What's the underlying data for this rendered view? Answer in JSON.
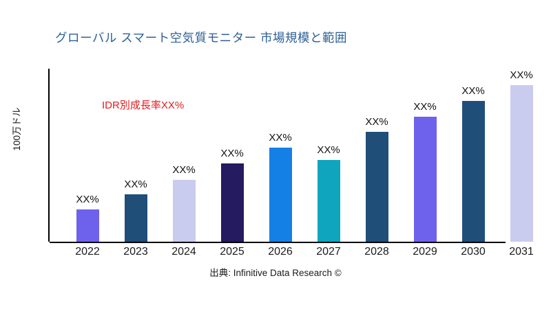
{
  "header": {
    "title": "グローバル スマート空気質モニター 市場規模と範囲",
    "title_color": "#2E6095"
  },
  "annotation": {
    "growth_rate_label": "IDR別成長率XX%",
    "color": "#E8191E"
  },
  "source": {
    "credit": "出典: Infinitive Data Research ©"
  },
  "chart_data": {
    "type": "bar",
    "title": "グローバル スマート空気質モニター 市場規模と範囲",
    "xlabel": "",
    "ylabel": "100万ドル",
    "categories": [
      "2022",
      "2023",
      "2024",
      "2025",
      "2026",
      "2027",
      "2028",
      "2029",
      "2030",
      "2031"
    ],
    "data_labels": [
      "XX%",
      "XX%",
      "XX%",
      "XX%",
      "XX%",
      "XX%",
      "XX%",
      "XX%",
      "XX%",
      "XX%"
    ],
    "values_relative": [
      47,
      69,
      90,
      114,
      137,
      119,
      160,
      182,
      205,
      228
    ],
    "value_note": "numeric values masked as XX% in figure; values_relative are estimated bar heights in px (plot height 252px)",
    "bar_colors": [
      "#6E62EC",
      "#1F4E79",
      "#C9CBEF",
      "#241B60",
      "#1480E6",
      "#0FA5BF",
      "#1F4E79",
      "#6E62EC",
      "#1F4E79",
      "#C9CBEF"
    ],
    "grid": false,
    "legend": false,
    "axis_color": "#000000",
    "x_axis_ends_before_last_bar": true
  }
}
